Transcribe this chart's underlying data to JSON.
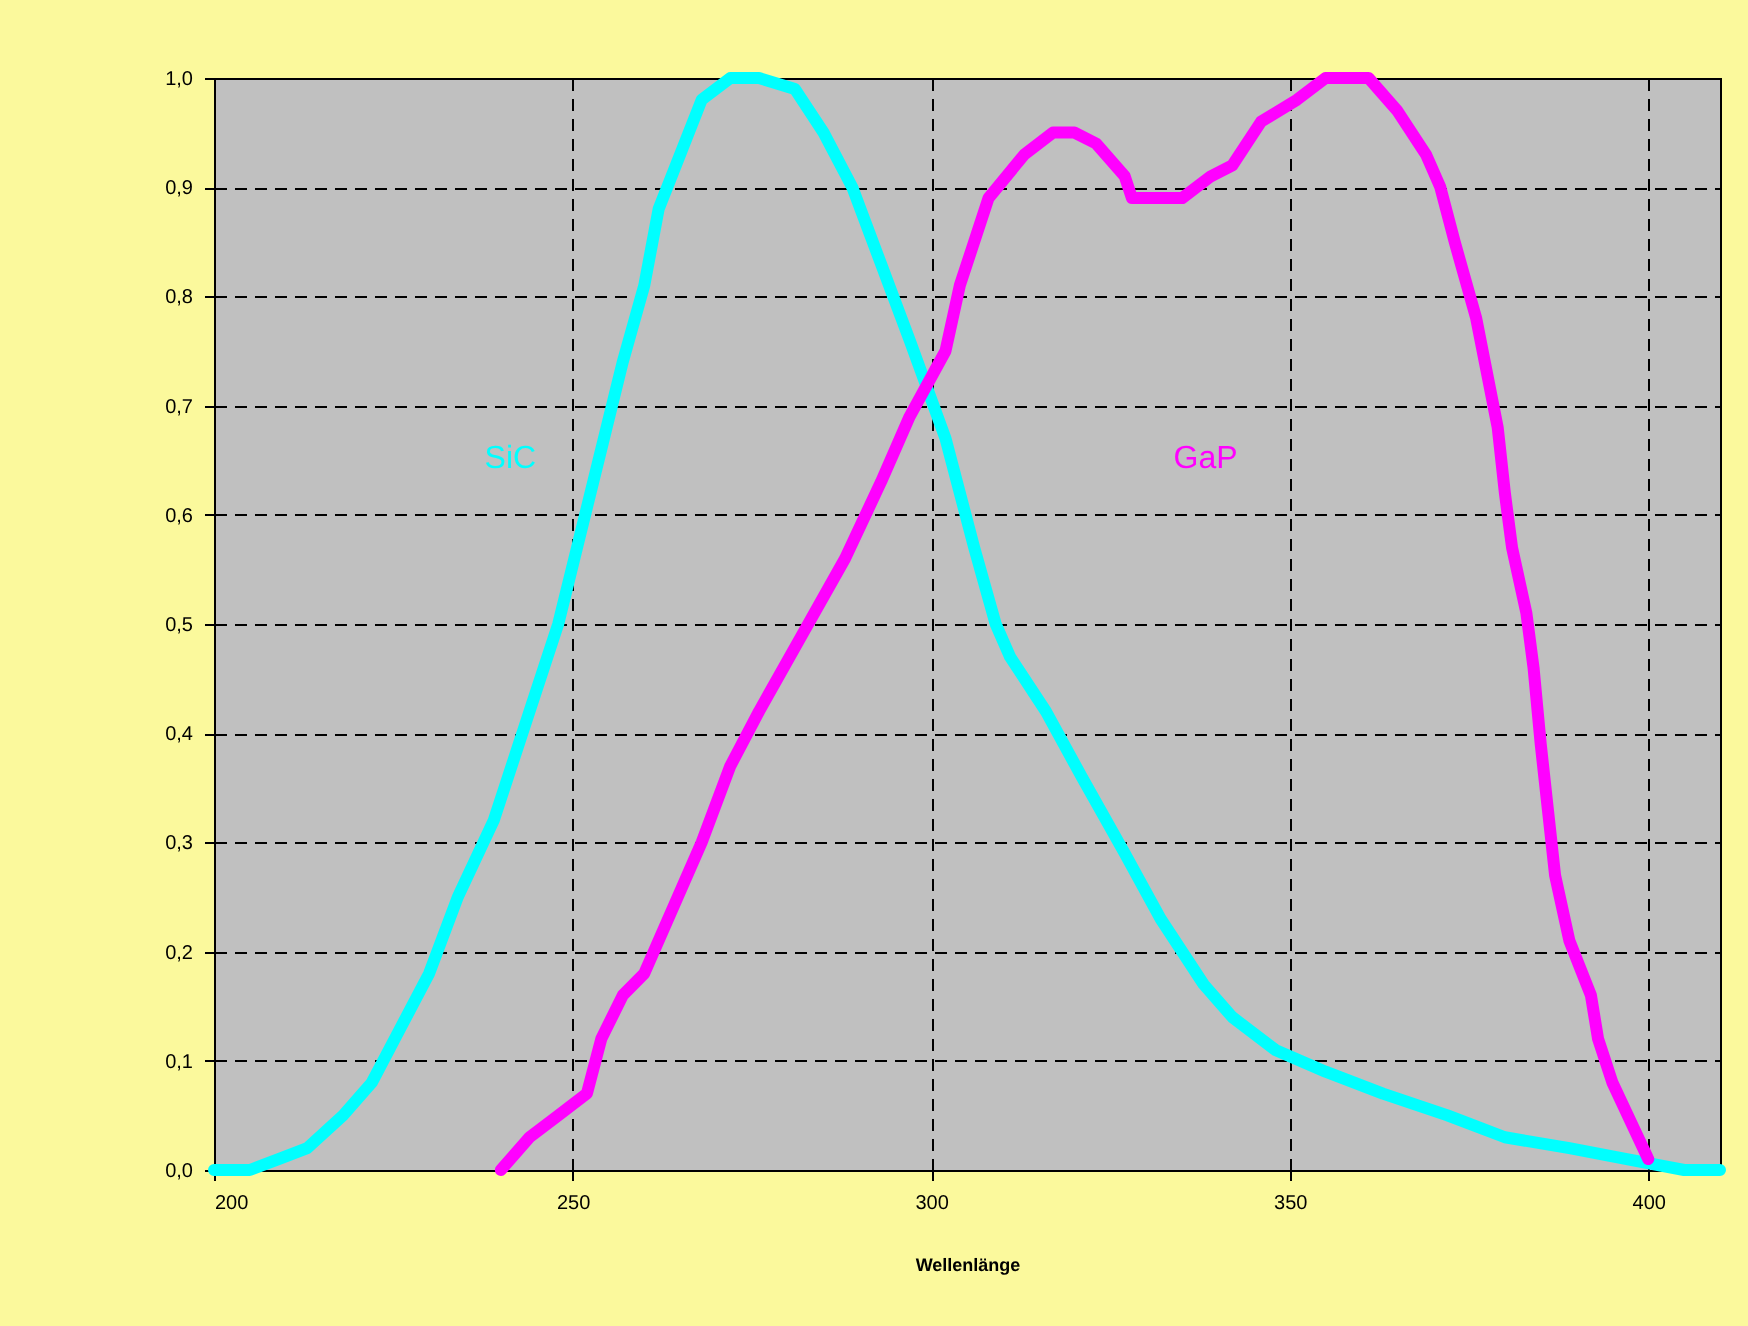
{
  "chart_data": {
    "type": "line",
    "xlabel": "Wellenlänge",
    "xlim": [
      200,
      410
    ],
    "xticks": [
      200,
      250,
      300,
      350,
      400
    ],
    "ylim": [
      0,
      1
    ],
    "yticks": [
      {
        "value": 0,
        "label": "0,0"
      },
      {
        "value": 0.1,
        "label": "0,1"
      },
      {
        "value": 0.2,
        "label": "0,2"
      },
      {
        "value": 0.3,
        "label": "0,3"
      },
      {
        "value": 0.4,
        "label": "0,4"
      },
      {
        "value": 0.5,
        "label": "0,5"
      },
      {
        "value": 0.6,
        "label": "0,6"
      },
      {
        "value": 0.7,
        "label": "0,7"
      },
      {
        "value": 0.8,
        "label": "0,8"
      },
      {
        "value": 0.9,
        "label": "0,9"
      },
      {
        "value": 1,
        "label": "1,0"
      }
    ],
    "grid": true,
    "marker": "none",
    "line_style": "solid",
    "series": [
      {
        "name": "SiC",
        "color": "#00ffff",
        "x": [
          200,
          205,
          209,
          213,
          218,
          222,
          226,
          230,
          234,
          239,
          243,
          246,
          248,
          251,
          254,
          257,
          260,
          262,
          265,
          268,
          272,
          276,
          281,
          285,
          289,
          293,
          297,
          302,
          306,
          309,
          311,
          316,
          321,
          327,
          332,
          338,
          342,
          348,
          355,
          363,
          372,
          380,
          389,
          397,
          405,
          410
        ],
        "values": [
          0,
          0,
          0.01,
          0.02,
          0.05,
          0.08,
          0.13,
          0.18,
          0.25,
          0.32,
          0.4,
          0.46,
          0.5,
          0.58,
          0.66,
          0.74,
          0.81,
          0.88,
          0.93,
          0.98,
          1,
          1,
          0.99,
          0.95,
          0.9,
          0.83,
          0.76,
          0.67,
          0.57,
          0.5,
          0.47,
          0.42,
          0.36,
          0.29,
          0.23,
          0.17,
          0.14,
          0.11,
          0.09,
          0.07,
          0.05,
          0.03,
          0.02,
          0.01,
          0,
          0
        ]
      },
      {
        "name": "GaP",
        "color": "#ff00ff",
        "x": [
          240,
          244,
          248,
          252,
          254,
          257,
          260,
          264,
          268,
          272,
          276,
          282,
          288,
          293,
          297,
          302,
          304,
          308,
          313,
          317,
          320,
          323,
          327,
          328,
          333,
          335,
          339,
          342,
          346,
          351,
          355,
          361,
          365,
          369,
          371,
          373,
          376,
          379,
          380,
          381,
          383,
          384,
          385,
          386,
          387,
          389,
          392,
          393,
          395,
          400
        ],
        "values": [
          0,
          0.03,
          0.05,
          0.07,
          0.12,
          0.16,
          0.18,
          0.24,
          0.3,
          0.37,
          0.42,
          0.49,
          0.56,
          0.63,
          0.69,
          0.75,
          0.81,
          0.89,
          0.93,
          0.95,
          0.95,
          0.94,
          0.91,
          0.89,
          0.89,
          0.89,
          0.91,
          0.92,
          0.96,
          0.98,
          1,
          1,
          0.97,
          0.93,
          0.9,
          0.85,
          0.78,
          0.68,
          0.62,
          0.57,
          0.51,
          0.46,
          0.39,
          0.33,
          0.27,
          0.21,
          0.16,
          0.12,
          0.08,
          0.01
        ]
      }
    ]
  }
}
